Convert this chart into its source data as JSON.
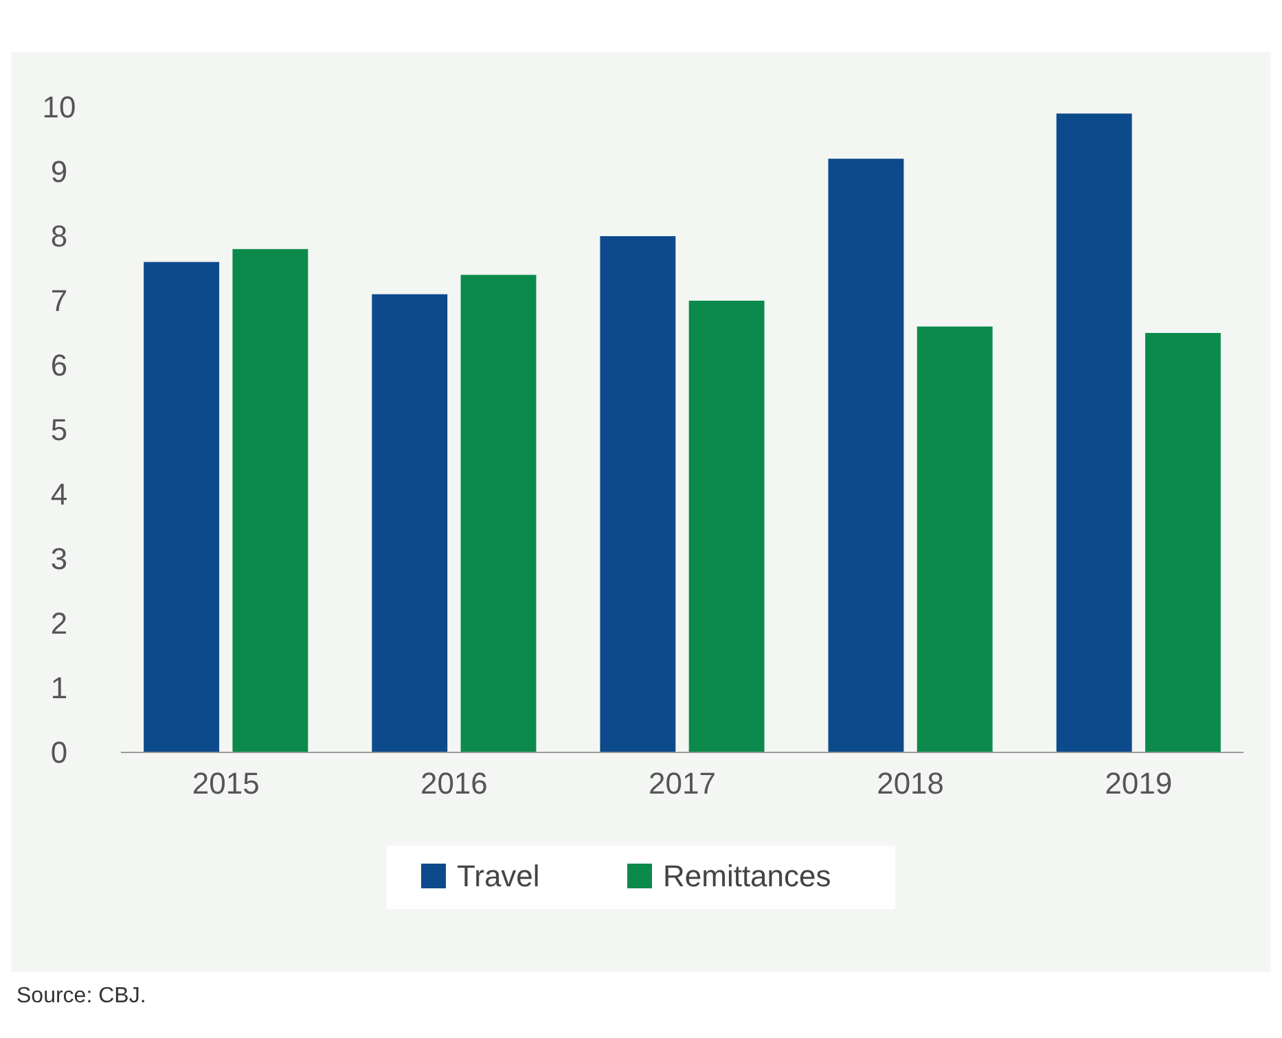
{
  "chart_data": {
    "type": "bar",
    "categories": [
      "2015",
      "2016",
      "2017",
      "2018",
      "2019"
    ],
    "series": [
      {
        "name": "Travel",
        "color": "#0d4a8c",
        "values": [
          7.6,
          7.1,
          8.0,
          9.2,
          9.9
        ]
      },
      {
        "name": "Remittances",
        "color": "#0b8a4c",
        "values": [
          7.8,
          7.4,
          7.0,
          6.6,
          6.5
        ]
      }
    ],
    "ylim": [
      0,
      10
    ],
    "yticks": [
      0,
      1,
      2,
      3,
      4,
      5,
      6,
      7,
      8,
      9,
      10
    ],
    "grid": false,
    "legend": "bottom",
    "annotations": [
      "Source: CBJ."
    ]
  }
}
